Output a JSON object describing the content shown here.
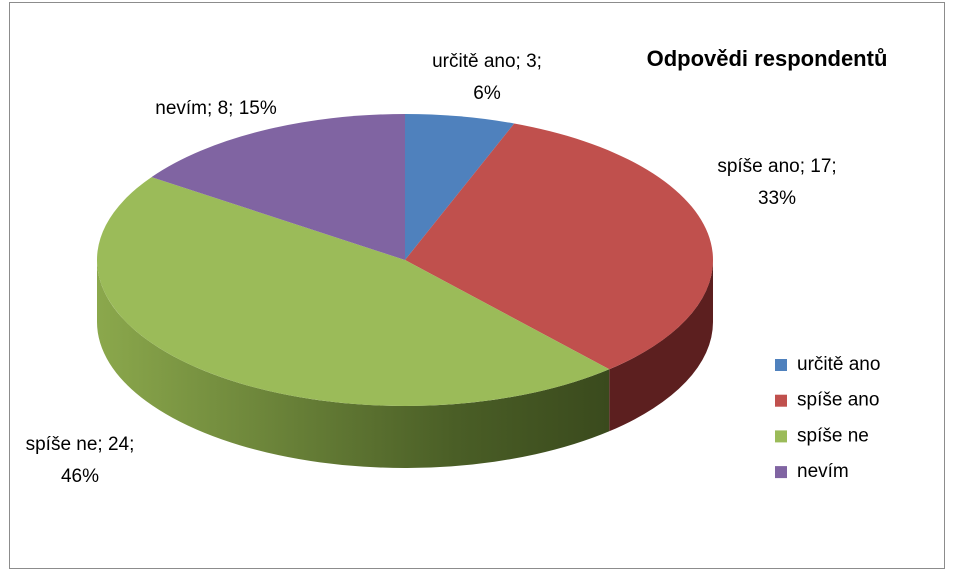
{
  "chart_data": {
    "type": "pie",
    "title": "Odpovědi respondentů",
    "categories": [
      "určitě ano",
      "spíše ano",
      "spíše ne",
      "nevím"
    ],
    "values": [
      3,
      17,
      24,
      8
    ],
    "value_labels": [
      [
        "určitě ano; 3;",
        "6%"
      ],
      [
        "spíše ano; 17;",
        "33%"
      ],
      [
        "spíše ne; 24;",
        "46%"
      ],
      [
        "nevím; 8; 15%"
      ]
    ],
    "colors": [
      "#4f81bd",
      "#c0504d",
      "#9bbb59",
      "#8064a2"
    ],
    "legend": "right"
  }
}
